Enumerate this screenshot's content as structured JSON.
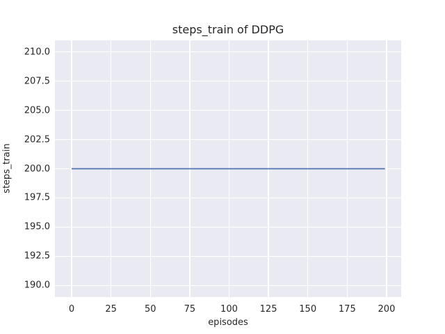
{
  "chart_data": {
    "type": "line",
    "title": "steps_train of DDPG",
    "xlabel": "episodes",
    "ylabel": "steps_train",
    "xlim": [
      -10.6,
      209.3
    ],
    "ylim": [
      189.0,
      211.0
    ],
    "xticks": [
      0,
      25,
      50,
      75,
      100,
      125,
      150,
      175,
      200
    ],
    "xtick_labels": [
      "0",
      "25",
      "50",
      "75",
      "100",
      "125",
      "150",
      "175",
      "200"
    ],
    "yticks": [
      190.0,
      192.5,
      195.0,
      197.5,
      200.0,
      202.5,
      205.0,
      207.5,
      210.0
    ],
    "ytick_labels": [
      "190.0",
      "192.5",
      "195.0",
      "197.5",
      "200.0",
      "202.5",
      "205.0",
      "207.5",
      "210.0"
    ],
    "grid": true,
    "legend": "none",
    "plot_background": "#eaeaf2",
    "grid_color": "#ffffff",
    "text_color": "#262626",
    "series": [
      {
        "name": "steps_train",
        "color": "#4c72b0",
        "description": "constant value 200 for every episode from 0 to 199",
        "x": [
          0,
          199
        ],
        "y": [
          200,
          200
        ]
      }
    ]
  }
}
